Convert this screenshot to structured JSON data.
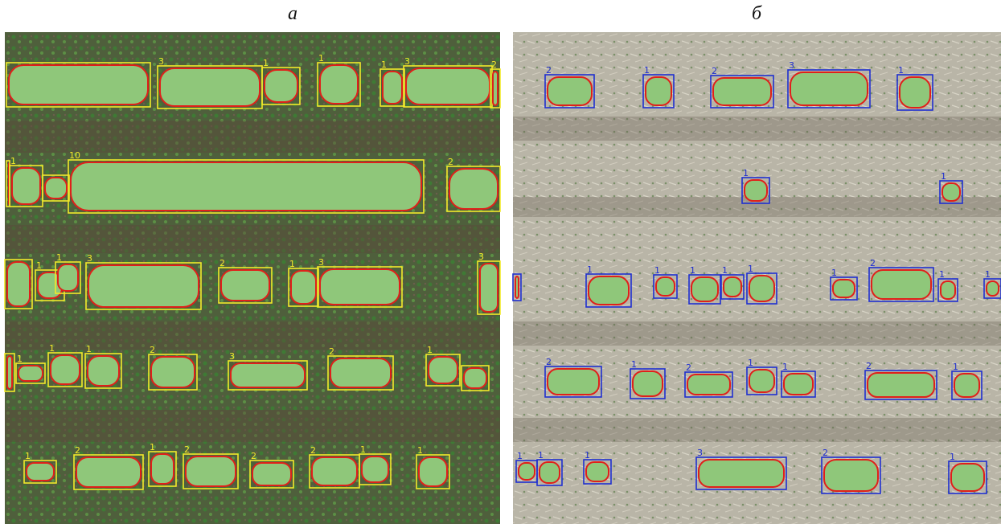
{
  "panels": [
    {
      "caption": "а",
      "labels": [
        3,
        1,
        1,
        1,
        3,
        2,
        1,
        10,
        2,
        1,
        1,
        3,
        2,
        1,
        3,
        3,
        1,
        1,
        1,
        2,
        3,
        2,
        1,
        1,
        2,
        1,
        2,
        2,
        2,
        1,
        1
      ]
    },
    {
      "caption": "б",
      "labels": [
        2,
        1,
        2,
        3,
        1,
        1,
        1,
        1,
        1,
        1,
        1,
        1,
        1,
        2,
        1,
        1,
        2,
        1,
        2,
        1,
        1,
        2,
        1,
        1,
        1,
        1,
        3,
        2,
        1
      ]
    }
  ]
}
